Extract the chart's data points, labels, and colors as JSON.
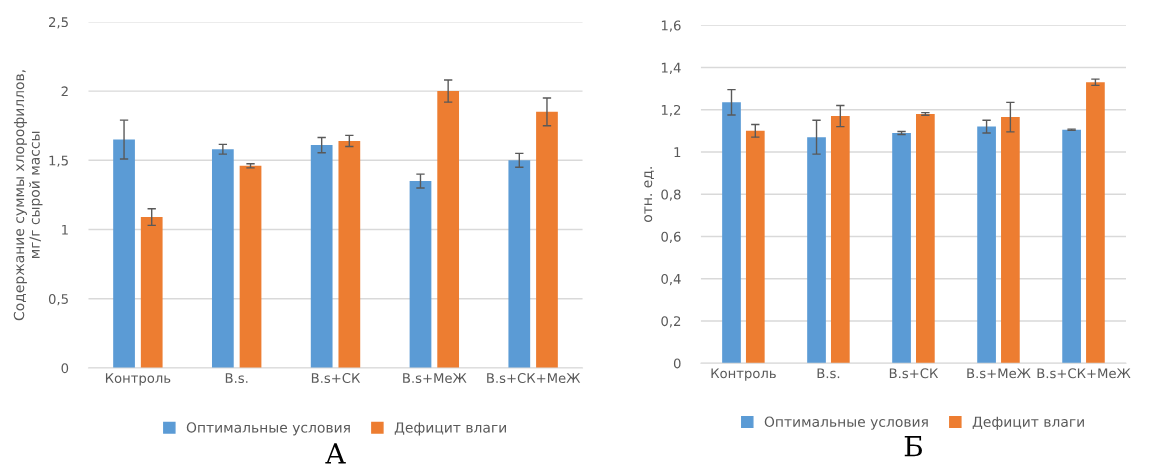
{
  "chart_data": [
    {
      "type": "bar",
      "title": "А",
      "ylabel": "Содержание суммы хлорофиллов,\nмг/г сырой массы",
      "categories": [
        "Контроль",
        "B.s.",
        "B.s+СК",
        "B.s+МеЖ",
        "B.s+СК+МеЖ"
      ],
      "series": [
        {
          "name": "Оптимальные условия",
          "color": "#5b9bd5",
          "values": [
            1.65,
            1.58,
            1.61,
            1.35,
            1.5
          ],
          "errors": [
            0.14,
            0.035,
            0.055,
            0.05,
            0.05
          ]
        },
        {
          "name": "Дефицит влаги",
          "color": "#ed7d31",
          "values": [
            1.09,
            1.46,
            1.64,
            2.0,
            1.85
          ],
          "errors": [
            0.06,
            0.015,
            0.04,
            0.08,
            0.1
          ]
        }
      ],
      "ylim": [
        0,
        2.5
      ],
      "yticks": [
        0,
        {
          "value": 0.5,
          "label": "0,5"
        },
        1,
        {
          "value": 1.5,
          "label": "1,5"
        },
        2,
        {
          "value": 2.5,
          "label": "2,5"
        }
      ],
      "grid": "y",
      "legend": "bottom"
    },
    {
      "type": "bar",
      "title": "Б",
      "ylabel": "отн. ед.",
      "categories": [
        "Контроль",
        "B.s.",
        "B.s+СК",
        "B.s+МеЖ",
        "B.s+СК+МеЖ"
      ],
      "series": [
        {
          "name": "Оптимальные условия",
          "color": "#5b9bd5",
          "values": [
            1.235,
            1.07,
            1.09,
            1.12,
            1.105
          ],
          "errors": [
            0.06,
            0.08,
            0.007,
            0.03,
            0.003
          ]
        },
        {
          "name": "Дефицит влаги",
          "color": "#ed7d31",
          "values": [
            1.1,
            1.17,
            1.18,
            1.165,
            1.33
          ],
          "errors": [
            0.03,
            0.05,
            0.006,
            0.07,
            0.015
          ]
        }
      ],
      "ylim": [
        0,
        1.6
      ],
      "yticks": [
        0,
        {
          "value": 0.2,
          "label": "0,2"
        },
        {
          "value": 0.4,
          "label": "0,4"
        },
        {
          "value": 0.6,
          "label": "0,6"
        },
        {
          "value": 0.8,
          "label": "0,8"
        },
        1,
        {
          "value": 1.2,
          "label": "1,2"
        },
        {
          "value": 1.4,
          "label": "1,4"
        },
        {
          "value": 1.6,
          "label": "1,6"
        }
      ],
      "grid": "y",
      "legend": "bottom"
    }
  ]
}
